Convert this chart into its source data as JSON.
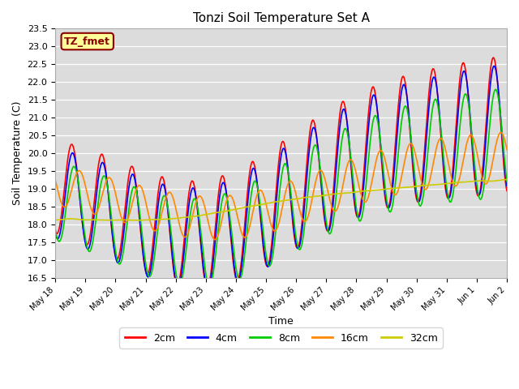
{
  "title": "Tonzi Soil Temperature Set A",
  "xlabel": "Time",
  "ylabel": "Soil Temperature (C)",
  "ylim": [
    16.5,
    23.5
  ],
  "bg_color": "#dcdcdc",
  "annotation_text": "TZ_fmet",
  "annotation_bg": "#ffff99",
  "annotation_border": "#8b0000",
  "series": {
    "2cm": {
      "color": "#ff0000",
      "linewidth": 1.2
    },
    "4cm": {
      "color": "#0000ff",
      "linewidth": 1.2
    },
    "8cm": {
      "color": "#00cc00",
      "linewidth": 1.2
    },
    "16cm": {
      "color": "#ff8800",
      "linewidth": 1.2
    },
    "32cm": {
      "color": "#cccc00",
      "linewidth": 1.2
    }
  },
  "xtick_labels": [
    "May 18",
    "May 19",
    "May 20",
    "May 21",
    "May 22",
    "May 23",
    "May 24",
    "May 25",
    "May 26",
    "May 27",
    "May 28",
    "May 29",
    "May 30",
    "May 31",
    "Jun 1",
    "Jun 2"
  ],
  "ytick_values": [
    16.5,
    17.0,
    17.5,
    18.0,
    18.5,
    19.0,
    19.5,
    20.0,
    20.5,
    21.0,
    21.5,
    22.0,
    22.5,
    23.0,
    23.5
  ],
  "legend_labels": [
    "2cm",
    "4cm",
    "8cm",
    "16cm",
    "32cm"
  ],
  "legend_colors": [
    "#ff0000",
    "#0000ff",
    "#00cc00",
    "#ff8800",
    "#cccc00"
  ]
}
